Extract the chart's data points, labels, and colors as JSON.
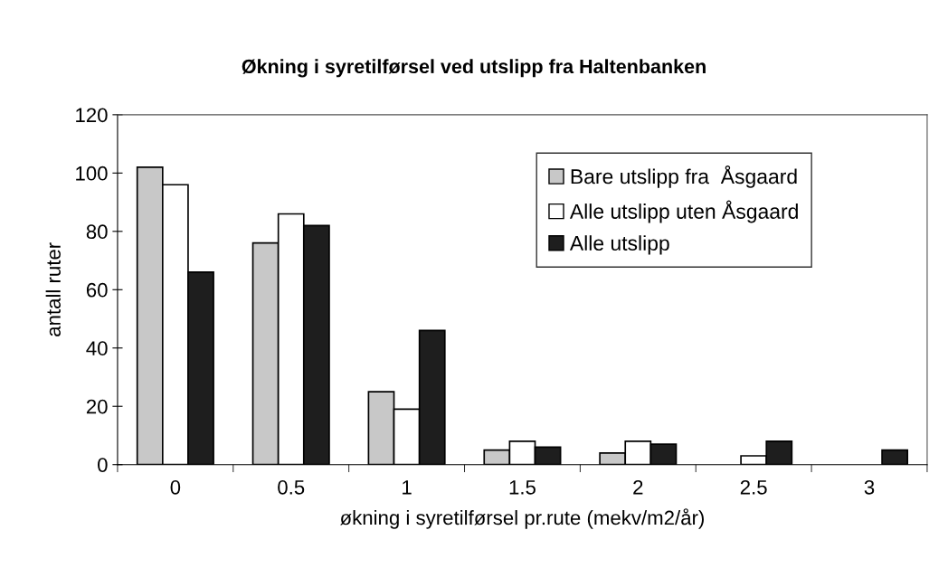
{
  "chart_data": {
    "type": "bar",
    "title": "Økning i syretilførsel ved utslipp fra Haltenbanken",
    "xlabel": "økning i syretilførsel pr.rute (mekv/m2/år)",
    "ylabel": "antall ruter",
    "categories": [
      "0",
      "0.5",
      "1",
      "1.5",
      "2",
      "2.5",
      "3"
    ],
    "series": [
      {
        "name": "Bare utslipp fra  Åsgaard",
        "color": "#c8c8c8",
        "values": [
          102,
          76,
          25,
          5,
          4,
          0,
          0
        ]
      },
      {
        "name": "Alle utslipp uten Åsgaard",
        "color": "#ffffff",
        "values": [
          96,
          86,
          19,
          8,
          8,
          3,
          0
        ]
      },
      {
        "name": "Alle utslipp",
        "color": "#1e1e1e",
        "values": [
          66,
          82,
          46,
          6,
          7,
          8,
          5
        ]
      }
    ],
    "ylim": [
      0,
      120
    ],
    "yticks": [
      0,
      20,
      40,
      60,
      80,
      100,
      120
    ],
    "grid": false,
    "legend": "top right"
  }
}
